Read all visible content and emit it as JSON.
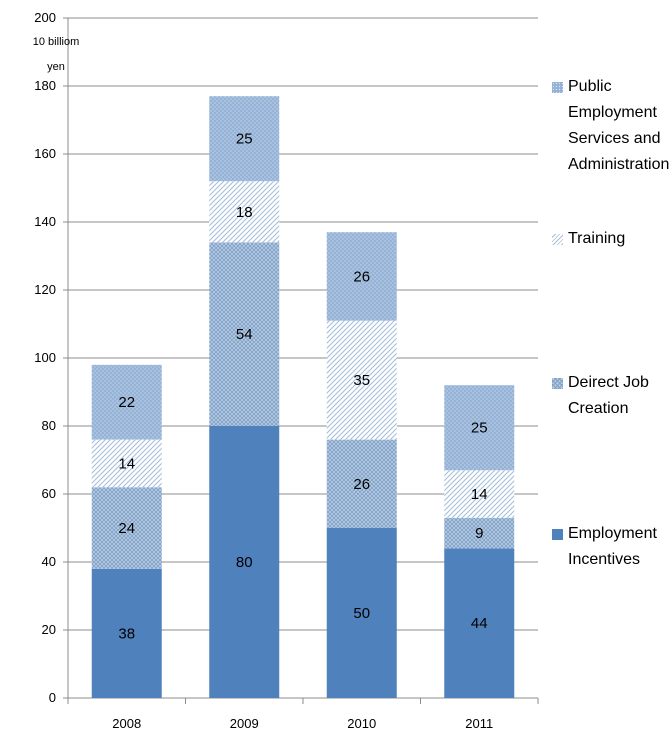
{
  "chart_data": {
    "type": "bar",
    "stacked": true,
    "title": "",
    "xlabel": "",
    "ylabel": "",
    "unit_label_line1": "10 billiom",
    "unit_label_line2": "yen",
    "ylim": [
      0,
      200
    ],
    "yticks": [
      0,
      20,
      40,
      60,
      80,
      100,
      120,
      140,
      160,
      180,
      200
    ],
    "grid": true,
    "legend_position": "right",
    "categories": [
      "2008",
      "2009",
      "2010",
      "2011"
    ],
    "series": [
      {
        "name": "Employment Incentives",
        "values": [
          38,
          80,
          50,
          44
        ],
        "color": "#4f81bd",
        "pattern": "solid"
      },
      {
        "name": "Deirect Job Creation",
        "values": [
          24,
          54,
          26,
          9
        ],
        "color": "#95b3d7",
        "pattern": "grid"
      },
      {
        "name": "Training",
        "values": [
          14,
          18,
          35,
          14
        ],
        "color": "#c6d9ec",
        "pattern": "diagonal"
      },
      {
        "name": "Public Employment Services and Administration",
        "values": [
          22,
          25,
          26,
          25
        ],
        "color": "#95b3d7",
        "pattern": "dots"
      }
    ]
  }
}
